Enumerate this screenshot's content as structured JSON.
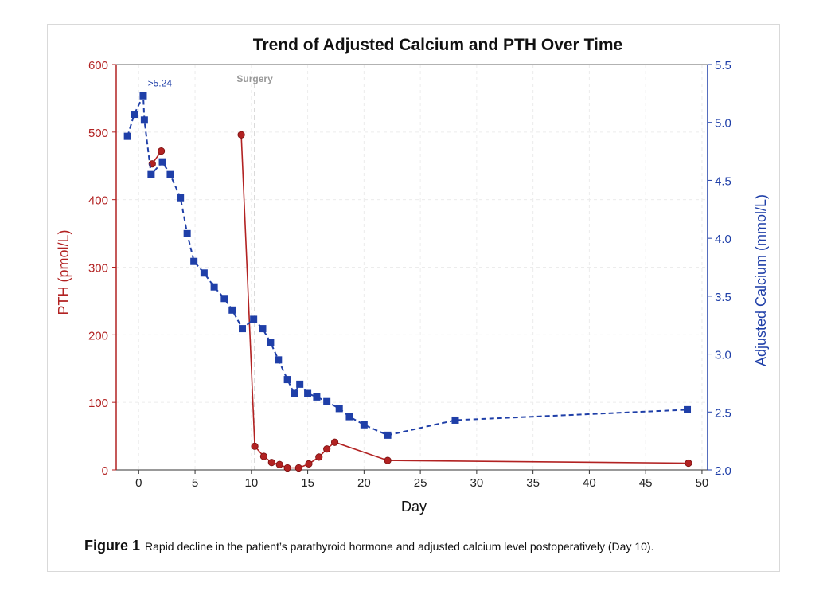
{
  "chart_data": {
    "type": "line",
    "title": "Trend of Adjusted Calcium and PTH Over Time",
    "xlabel": "Day",
    "ylabel_left": "PTH (pmol/L)",
    "ylabel_right": "Adjusted Calcium (mmol/L)",
    "xlim": [
      -2,
      50.5
    ],
    "ylim_left": [
      0,
      600
    ],
    "ylim_right": [
      2.0,
      5.5
    ],
    "x_ticks": [
      "0",
      "5",
      "10",
      "15",
      "20",
      "25",
      "30",
      "35",
      "40",
      "45",
      "50"
    ],
    "y_left_ticks": [
      "0",
      "100",
      "200",
      "300",
      "400",
      "500",
      "600"
    ],
    "y_right_ticks": [
      "2.0",
      "2.5",
      "3.0",
      "3.5",
      "4.0",
      "4.5",
      "5.0",
      "5.5"
    ],
    "grid": true,
    "colors": {
      "pth": "#b22222",
      "calcium": "#1f3fa8",
      "surgery": "#c8c8c8",
      "surgery_label": "#999999"
    },
    "surgery_line": {
      "x": 10.3,
      "label": "Surgery"
    },
    "annotation": {
      "text": ">5.24",
      "x": 0.8,
      "y": 5.31
    },
    "series": [
      {
        "axis": "left",
        "style": "solid",
        "marker": "circle",
        "segments": [
          [
            [
              1.2,
              453
            ],
            [
              2.0,
              472
            ]
          ],
          [
            [
              9.1,
              496
            ],
            [
              10.3,
              35
            ],
            [
              11.1,
              20
            ],
            [
              11.8,
              11
            ],
            [
              12.5,
              8
            ],
            [
              13.2,
              3
            ],
            [
              14.2,
              3
            ],
            [
              15.1,
              9
            ],
            [
              16.0,
              19
            ],
            [
              16.7,
              31
            ],
            [
              17.4,
              41
            ],
            [
              22.1,
              14
            ],
            [
              48.8,
              10
            ]
          ]
        ]
      },
      {
        "axis": "right",
        "style": "dashed",
        "marker": "square",
        "points": [
          [
            -1.0,
            4.88
          ],
          [
            -0.4,
            5.07
          ],
          [
            0.4,
            5.23
          ],
          [
            0.5,
            5.02
          ],
          [
            1.1,
            4.55
          ],
          [
            2.1,
            4.66
          ],
          [
            2.8,
            4.55
          ],
          [
            3.7,
            4.35
          ],
          [
            4.3,
            4.04
          ],
          [
            4.9,
            3.8
          ],
          [
            5.8,
            3.7
          ],
          [
            6.7,
            3.58
          ],
          [
            7.6,
            3.48
          ],
          [
            8.3,
            3.38
          ],
          [
            9.2,
            3.22
          ],
          [
            10.2,
            3.3
          ],
          [
            11.0,
            3.22
          ],
          [
            11.7,
            3.1
          ],
          [
            12.4,
            2.95
          ],
          [
            13.2,
            2.78
          ],
          [
            13.8,
            2.66
          ],
          [
            14.3,
            2.74
          ],
          [
            15.0,
            2.66
          ],
          [
            15.8,
            2.63
          ],
          [
            16.7,
            2.59
          ],
          [
            17.8,
            2.53
          ],
          [
            18.7,
            2.46
          ],
          [
            20.0,
            2.39
          ],
          [
            22.1,
            2.3
          ],
          [
            28.1,
            2.43
          ],
          [
            48.7,
            2.52
          ]
        ]
      }
    ]
  },
  "caption": {
    "label": "Figure 1",
    "text": "Rapid decline in the patient’s parathyroid hormone and adjusted calcium level postoperatively (Day 10)."
  }
}
